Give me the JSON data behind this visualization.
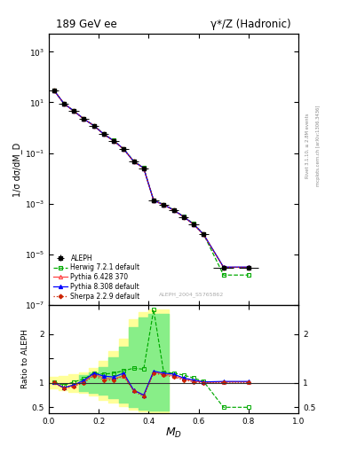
{
  "title_left": "189 GeV ee",
  "title_right": "γ*/Z (Hadronic)",
  "xlabel": "M_D",
  "ylabel_main": "1/σ dσ/dM_D",
  "ylabel_ratio": "Ratio to ALEPH",
  "right_label_top": "Rivet 3.1.10, ≥ 2.8M events",
  "right_label_bottom": "mcplots.cern.ch [arXiv:1306.3436]",
  "analysis_label": "ALEPH_2004_S5765862",
  "ylim_main": [
    1e-07,
    5000.0
  ],
  "ylim_ratio": [
    0.38,
    2.6
  ],
  "xlim": [
    0.0,
    1.0
  ],
  "data_x": [
    0.02,
    0.06,
    0.1,
    0.14,
    0.18,
    0.22,
    0.26,
    0.3,
    0.34,
    0.38,
    0.42,
    0.46,
    0.5,
    0.54,
    0.58,
    0.62,
    0.7,
    0.8
  ],
  "data_y": [
    30.0,
    9.0,
    4.5,
    2.2,
    1.2,
    0.55,
    0.3,
    0.14,
    0.046,
    0.025,
    0.0013,
    0.0009,
    0.00055,
    0.0003,
    0.00015,
    6e-05,
    3e-06,
    3e-06
  ],
  "data_yerr": [
    3.0,
    0.6,
    0.3,
    0.15,
    0.07,
    0.03,
    0.015,
    0.008,
    0.003,
    0.002,
    0.0001,
    6e-05,
    4e-05,
    2e-05,
    1e-05,
    5e-06,
    4e-07,
    4e-07
  ],
  "data_xerr": [
    0.02,
    0.02,
    0.02,
    0.02,
    0.02,
    0.02,
    0.02,
    0.02,
    0.02,
    0.02,
    0.02,
    0.02,
    0.02,
    0.02,
    0.02,
    0.02,
    0.04,
    0.04
  ],
  "herwig_x": [
    0.02,
    0.06,
    0.1,
    0.14,
    0.18,
    0.22,
    0.26,
    0.3,
    0.34,
    0.38,
    0.42,
    0.46,
    0.5,
    0.54,
    0.58,
    0.62,
    0.7,
    0.8
  ],
  "herwig_y": [
    30.5,
    9.1,
    4.6,
    2.25,
    1.22,
    0.565,
    0.31,
    0.145,
    0.048,
    0.026,
    0.00135,
    0.00093,
    0.00057,
    0.00031,
    0.00016,
    6.2e-05,
    1.5e-06,
    1.5e-06
  ],
  "pythia6_x": [
    0.02,
    0.06,
    0.1,
    0.14,
    0.18,
    0.22,
    0.26,
    0.3,
    0.34,
    0.38,
    0.42,
    0.46,
    0.5,
    0.54,
    0.58,
    0.62,
    0.7,
    0.8
  ],
  "pythia6_y": [
    30.3,
    9.05,
    4.52,
    2.21,
    1.21,
    0.552,
    0.301,
    0.141,
    0.0462,
    0.0252,
    0.00131,
    0.000905,
    0.000552,
    0.000302,
    0.000151,
    6.05e-05,
    3.05e-06,
    3.05e-06
  ],
  "pythia8_x": [
    0.02,
    0.06,
    0.1,
    0.14,
    0.18,
    0.22,
    0.26,
    0.3,
    0.34,
    0.38,
    0.42,
    0.46,
    0.5,
    0.54,
    0.58,
    0.62,
    0.7,
    0.8
  ],
  "pythia8_y": [
    30.4,
    9.08,
    4.55,
    2.22,
    1.215,
    0.556,
    0.304,
    0.143,
    0.0465,
    0.0254,
    0.00132,
    0.000912,
    0.000555,
    0.000304,
    0.000153,
    6.1e-05,
    3.1e-06,
    3.1e-06
  ],
  "sherpa_x": [
    0.02,
    0.06,
    0.1,
    0.14,
    0.18,
    0.22,
    0.26,
    0.3,
    0.34,
    0.38,
    0.42,
    0.46,
    0.5,
    0.54,
    0.58,
    0.62,
    0.7,
    0.8
  ],
  "sherpa_y": [
    30.2,
    9.02,
    4.51,
    2.205,
    1.205,
    0.55,
    0.299,
    0.14,
    0.046,
    0.025,
    0.0013,
    0.0009,
    0.00055,
    0.0003,
    0.00015,
    6e-05,
    3.02e-06,
    3.02e-06
  ],
  "color_data": "#000000",
  "color_herwig": "#00aa00",
  "color_pythia6": "#ff4444",
  "color_pythia8": "#0000ff",
  "color_sherpa": "#cc2200",
  "ratio_x": [
    0.02,
    0.06,
    0.1,
    0.14,
    0.18,
    0.22,
    0.26,
    0.3,
    0.34,
    0.38,
    0.42,
    0.46,
    0.5,
    0.54,
    0.58,
    0.62,
    0.7,
    0.8
  ],
  "ratio_herwig": [
    1.02,
    0.95,
    1.02,
    1.08,
    1.2,
    1.18,
    1.2,
    1.25,
    1.3,
    1.28,
    2.5,
    1.22,
    1.2,
    1.16,
    1.1,
    1.03,
    0.5,
    0.5
  ],
  "ratio_pythia6": [
    1.01,
    0.9,
    0.95,
    1.02,
    1.18,
    1.1,
    1.08,
    1.15,
    0.85,
    0.75,
    1.22,
    1.18,
    1.15,
    1.08,
    1.04,
    1.01,
    1.02,
    1.02
  ],
  "ratio_pythia8": [
    1.01,
    0.9,
    0.96,
    1.05,
    1.2,
    1.14,
    1.12,
    1.2,
    0.85,
    0.75,
    1.24,
    1.2,
    1.18,
    1.1,
    1.06,
    1.02,
    1.03,
    1.03
  ],
  "ratio_sherpa": [
    1.01,
    0.88,
    0.93,
    1.0,
    1.15,
    1.06,
    1.06,
    1.14,
    0.83,
    0.72,
    1.2,
    1.16,
    1.12,
    1.06,
    1.02,
    1.0,
    1.01,
    1.01
  ],
  "band_yellow_edges": [
    0.0,
    0.04,
    0.08,
    0.12,
    0.16,
    0.2,
    0.24,
    0.28,
    0.32,
    0.36,
    0.4,
    0.44,
    0.48
  ],
  "band_yellow_lo": [
    0.88,
    0.86,
    0.82,
    0.8,
    0.75,
    0.65,
    0.6,
    0.52,
    0.45,
    0.42,
    0.4,
    0.4,
    0.4
  ],
  "band_yellow_hi": [
    1.12,
    1.14,
    1.18,
    1.22,
    1.3,
    1.45,
    1.65,
    1.9,
    2.3,
    2.45,
    2.5,
    2.5,
    2.5
  ],
  "band_green_edges": [
    0.12,
    0.16,
    0.2,
    0.24,
    0.28,
    0.32,
    0.36,
    0.4,
    0.44,
    0.48
  ],
  "band_green_lo": [
    0.84,
    0.8,
    0.76,
    0.68,
    0.6,
    0.5,
    0.46,
    0.43,
    0.43,
    0.43
  ],
  "band_green_hi": [
    1.16,
    1.22,
    1.32,
    1.52,
    1.75,
    2.15,
    2.35,
    2.42,
    2.42,
    2.42
  ]
}
